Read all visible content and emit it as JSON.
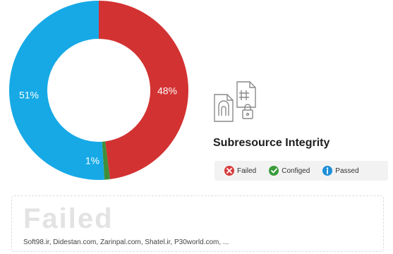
{
  "chart_data": {
    "type": "pie",
    "style": "donut",
    "slices": [
      {
        "label": "48%",
        "value": 48,
        "color": "#d33232"
      },
      {
        "label": "1%",
        "value": 1,
        "color": "#3f8f3a"
      },
      {
        "label": "51%",
        "value": 51,
        "color": "#16a9e6"
      }
    ]
  },
  "panel": {
    "icon": "document-hash-icon",
    "title": "Subresource Integrity"
  },
  "legend": {
    "items": [
      {
        "label": "Failed",
        "icon": "failed-x-icon",
        "color": "#d83b3b"
      },
      {
        "label": "Configed",
        "icon": "configed-check-icon",
        "color": "#3a9b3a"
      },
      {
        "label": "Passed",
        "icon": "passed-info-icon",
        "color": "#1e8fd8"
      }
    ]
  },
  "result": {
    "status": "Failed",
    "sites": "Soft98.ir, Didestan.com, Zarinpal.com, Shatel.ir, P30world.com, ..."
  }
}
